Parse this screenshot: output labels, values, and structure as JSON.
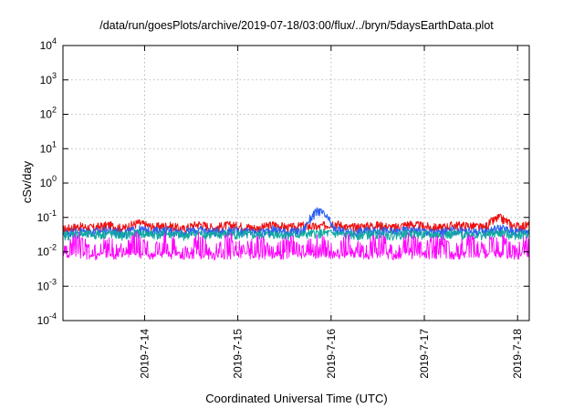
{
  "chart_data": {
    "type": "line",
    "title": "/data/run/goesPlots/archive/2019-07-18/03:00/flux/../bryn/5daysEarthData.plot",
    "xlabel": "Coordinated Universal Time (UTC)",
    "ylabel": "cSv/day",
    "yscale": "log",
    "ylim": [
      0.0001,
      10000
    ],
    "y_ticks": [
      {
        "value": 0.0001,
        "base": "10",
        "exp": "-4"
      },
      {
        "value": 0.001,
        "base": "10",
        "exp": "-3"
      },
      {
        "value": 0.01,
        "base": "10",
        "exp": "-2"
      },
      {
        "value": 0.1,
        "base": "10",
        "exp": "-1"
      },
      {
        "value": 1,
        "base": "10",
        "exp": "0"
      },
      {
        "value": 10,
        "base": "10",
        "exp": "1"
      },
      {
        "value": 100,
        "base": "10",
        "exp": "2"
      },
      {
        "value": 1000,
        "base": "10",
        "exp": "3"
      },
      {
        "value": 10000,
        "base": "10",
        "exp": "4"
      }
    ],
    "xlim": [
      "2019-07-13T03:00",
      "2019-07-18T03:00"
    ],
    "x_ticks": [
      {
        "value": "2019-07-14T00:00",
        "label": "2019-7-14"
      },
      {
        "value": "2019-07-15T00:00",
        "label": "2019-7-15"
      },
      {
        "value": "2019-07-16T00:00",
        "label": "2019-7-16"
      },
      {
        "value": "2019-07-17T00:00",
        "label": "2019-7-17"
      },
      {
        "value": "2019-07-18T00:00",
        "label": "2019-7-18"
      }
    ],
    "grid": true,
    "series": [
      {
        "color": "#ee1111",
        "values": [
          0.045,
          0.055,
          0.05,
          0.06,
          0.048,
          0.07,
          0.052,
          0.058,
          0.046,
          0.065,
          0.05,
          0.06,
          0.055,
          0.048,
          0.062,
          0.05,
          0.058,
          0.052,
          0.07,
          0.05,
          0.056,
          0.06,
          0.05,
          0.065,
          0.055,
          0.05,
          0.06,
          0.058,
          0.05,
          0.1,
          0.055,
          0.06
        ]
      },
      {
        "color": "#2a5ff0",
        "values": [
          0.035,
          0.04,
          0.038,
          0.042,
          0.036,
          0.045,
          0.04,
          0.042,
          0.036,
          0.044,
          0.038,
          0.042,
          0.04,
          0.036,
          0.044,
          0.038,
          0.04,
          0.16,
          0.045,
          0.036,
          0.04,
          0.042,
          0.038,
          0.044,
          0.04,
          0.036,
          0.042,
          0.04,
          0.038,
          0.05,
          0.04,
          0.042
        ]
      },
      {
        "color": "#12a8a0",
        "values": [
          0.03,
          0.033,
          0.031,
          0.034,
          0.03,
          0.035,
          0.032,
          0.033,
          0.03,
          0.034,
          0.031,
          0.033,
          0.032,
          0.03,
          0.034,
          0.031,
          0.032,
          0.035,
          0.034,
          0.03,
          0.032,
          0.033,
          0.031,
          0.034,
          0.032,
          0.03,
          0.033,
          0.032,
          0.031,
          0.035,
          0.032,
          0.033
        ]
      },
      {
        "color": "#ff00ff",
        "values": [
          0.008,
          0.02,
          0.007,
          0.018,
          0.008,
          0.022,
          0.007,
          0.02,
          0.008,
          0.019,
          0.007,
          0.021,
          0.008,
          0.018,
          0.007,
          0.02,
          0.008,
          0.019,
          0.007,
          0.02,
          0.008,
          0.021,
          0.007,
          0.019,
          0.008,
          0.02,
          0.007,
          0.018,
          0.008,
          0.022,
          0.007,
          0.02
        ]
      }
    ]
  }
}
